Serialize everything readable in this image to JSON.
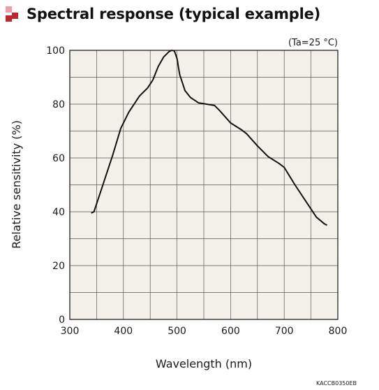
{
  "title": "Spectral response (typical example)",
  "condition": "(Ta=25 °C)",
  "doc_code": "KACCB0350EB",
  "colors": {
    "plot_bg": "#f3f0e9",
    "grid": "#555555",
    "curve": "#111111",
    "accent": "#c0272d"
  },
  "icon": "red-square-bullet-icon",
  "chart_data": {
    "type": "line",
    "title": "Spectral response (typical example)",
    "xlabel": "Wavelength (nm)",
    "ylabel": "Relative sensitivity (%)",
    "xlim": [
      300,
      800
    ],
    "ylim": [
      0,
      100
    ],
    "x_ticks": [
      "300",
      "400",
      "500",
      "600",
      "700",
      "800"
    ],
    "y_ticks": [
      "0",
      "20",
      "40",
      "60",
      "80",
      "100"
    ],
    "grid": true,
    "series": [
      {
        "x": [
          340,
          345,
          360,
          380,
          395,
          410,
          430,
          445,
          455,
          465,
          475,
          485,
          490,
          495,
          500,
          505,
          515,
          525,
          540,
          555,
          570,
          580,
          600,
          620,
          630,
          650,
          670,
          690,
          700,
          720,
          740,
          760,
          775,
          780
        ],
        "y": [
          39.5,
          40,
          49,
          61,
          71,
          77,
          83,
          86,
          89,
          94,
          97.5,
          99.5,
          100,
          99.8,
          97,
          91,
          85,
          82.5,
          80.5,
          80,
          79.5,
          77.5,
          73,
          70.5,
          69,
          64.5,
          60.5,
          58,
          56.5,
          50,
          44,
          38,
          35.5,
          35
        ]
      }
    ]
  }
}
